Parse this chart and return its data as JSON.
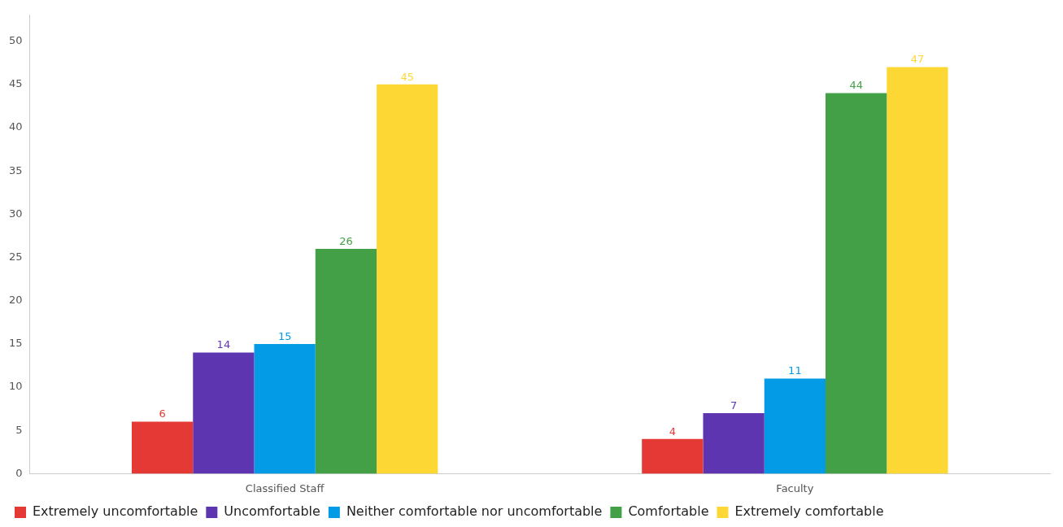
{
  "chart_data": {
    "type": "bar",
    "categories": [
      "Classified Staff",
      "Faculty"
    ],
    "series": [
      {
        "name": "Extremely uncomfortable",
        "color": "#e53935",
        "values": [
          6,
          4
        ]
      },
      {
        "name": "Uncomfortable",
        "color": "#5e35b1",
        "values": [
          14,
          7
        ]
      },
      {
        "name": "Neither comfortable nor uncomfortable",
        "color": "#039be5",
        "values": [
          15,
          11
        ]
      },
      {
        "name": "Comfortable",
        "color": "#43a047",
        "values": [
          26,
          44
        ]
      },
      {
        "name": "Extremely comfortable",
        "color": "#fdd835",
        "values": [
          45,
          47
        ]
      }
    ],
    "ylim": [
      0,
      53
    ],
    "yticks": [
      0,
      5,
      10,
      15,
      20,
      25,
      30,
      35,
      40,
      45,
      50
    ],
    "grid": false,
    "legend": "bottom",
    "data_labels": true
  }
}
